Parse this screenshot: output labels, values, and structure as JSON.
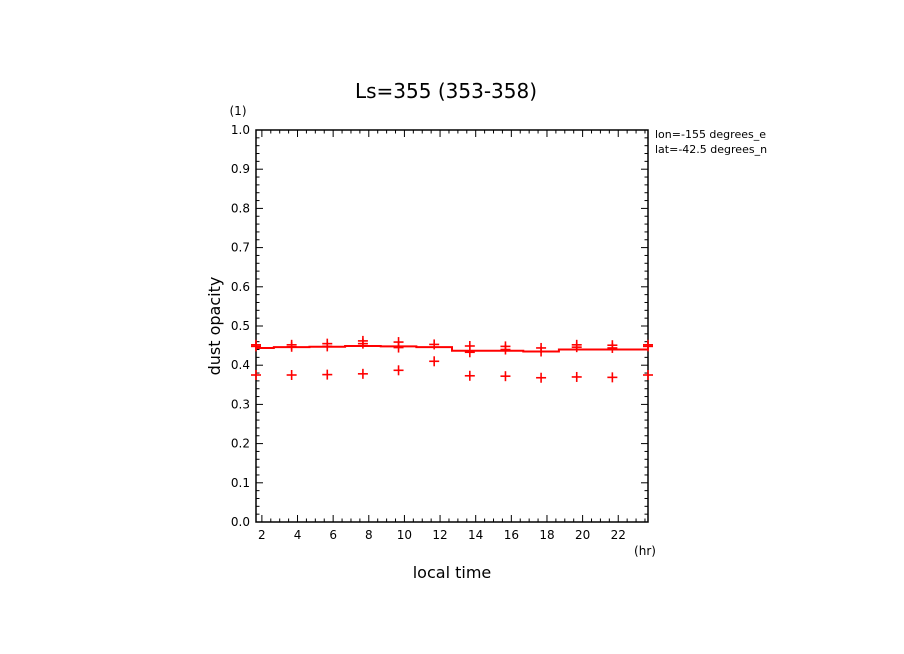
{
  "chart_data": {
    "type": "scatter",
    "title": "Ls=355 (353-358)",
    "xlabel": "local time",
    "ylabel": "dust opacity",
    "x_unit": "(hr)",
    "y_unit": "(1)",
    "xlim": [
      1.67,
      23.67
    ],
    "ylim": [
      0.0,
      1.0
    ],
    "x_ticks": [
      "2",
      "4",
      "6",
      "8",
      "10",
      "12",
      "14",
      "16",
      "18",
      "20",
      "22"
    ],
    "y_ticks": [
      "0.0",
      "0.1",
      "0.2",
      "0.3",
      "0.4",
      "0.5",
      "0.6",
      "0.7",
      "0.8",
      "0.9",
      "1.0"
    ],
    "annotations": [
      "lon=-155 degrees_e",
      "lat=-42.5 degrees_n"
    ],
    "grid": false,
    "color": "#ff0000",
    "series": [
      {
        "kind": "points",
        "x": [
          1.67,
          1.67,
          1.67,
          3.67,
          3.67,
          3.67,
          5.67,
          5.67,
          5.67,
          7.67,
          7.67,
          7.67,
          9.67,
          9.67,
          9.67,
          11.67,
          11.67,
          13.67,
          13.67,
          13.67,
          15.67,
          15.67,
          15.67,
          17.67,
          17.67,
          17.67,
          19.67,
          19.67,
          19.67,
          21.67,
          21.67,
          21.67,
          23.67,
          23.67,
          23.67
        ],
        "y": [
          0.452,
          0.448,
          0.375,
          0.452,
          0.447,
          0.375,
          0.455,
          0.448,
          0.376,
          0.462,
          0.455,
          0.378,
          0.459,
          0.445,
          0.387,
          0.453,
          0.41,
          0.449,
          0.433,
          0.373,
          0.448,
          0.44,
          0.372,
          0.444,
          0.435,
          0.368,
          0.452,
          0.446,
          0.37,
          0.451,
          0.444,
          0.369,
          0.452,
          0.448,
          0.375
        ]
      },
      {
        "kind": "line",
        "x": [
          1.67,
          3.67,
          5.67,
          7.67,
          9.67,
          11.67,
          13.67,
          15.67,
          17.67,
          19.67,
          21.67,
          23.67
        ],
        "y": [
          0.444,
          0.446,
          0.447,
          0.449,
          0.448,
          0.446,
          0.437,
          0.437,
          0.435,
          0.44,
          0.44,
          0.44
        ]
      }
    ]
  }
}
